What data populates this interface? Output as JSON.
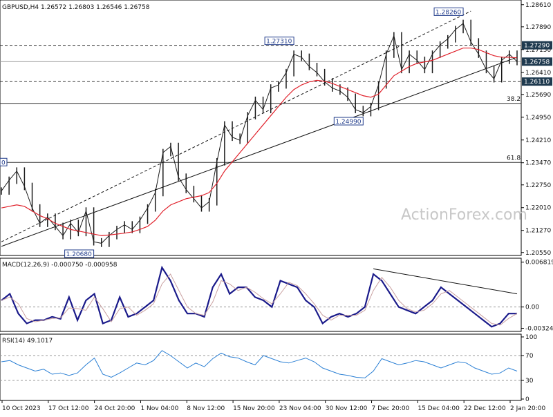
{
  "chart_data": {
    "type": "candlestick",
    "symbol_header": "GBPUSD,H4  1.26572 1.26803 1.26546 1.26758",
    "watermark": "ActionForex.com",
    "x_tick_labels": [
      "10 Oct 2023",
      "17 Oct 12:00",
      "24 Oct 20:00",
      "1 Nov 04:00",
      "8 Nov 12:00",
      "15 Nov 20:00",
      "23 Nov 04:00",
      "30 Nov 12:00",
      "7 Dec 20:00",
      "15 Dec 04:00",
      "22 Dec 12:00",
      "2 Jan 20:00"
    ],
    "price_panel": {
      "ylim": [
        1.205,
        1.2865
      ],
      "y_tick_labels": [
        "1.28610",
        "1.27890",
        "1.27150",
        "1.26410",
        "1.25690",
        "1.24950",
        "1.24210",
        "1.23470",
        "1.22750",
        "1.22010",
        "1.21270",
        "1.20550"
      ],
      "y_tick_values": [
        1.2861,
        1.2789,
        1.2715,
        1.2641,
        1.2569,
        1.2495,
        1.2421,
        1.2347,
        1.2275,
        1.2201,
        1.2127,
        1.2055
      ],
      "price_tags": [
        {
          "label": "1.27290",
          "value": 1.2729
        },
        {
          "label": "1.26758",
          "value": 1.26758
        },
        {
          "label": "1.26110",
          "value": 1.2611
        }
      ],
      "level_annotations": [
        {
          "label": "1.28260",
          "value": 1.2826,
          "date_index": 60
        },
        {
          "label": "1.27310",
          "value": 1.2731,
          "date_index": 38
        },
        {
          "label": "1.24990",
          "value": 1.2499,
          "date_index": 47
        },
        {
          "label": "1.20680",
          "value": 1.2068,
          "date_index": 12
        }
      ],
      "partial_left_tag": "0",
      "fib_levels": [
        {
          "label": "38.2",
          "value": 1.254
        },
        {
          "label": "61.8",
          "value": 1.2348
        }
      ],
      "close_series": [
        1.2255,
        1.229,
        1.232,
        1.227,
        1.22,
        1.215,
        1.217,
        1.214,
        1.211,
        1.215,
        1.212,
        1.219,
        1.209,
        1.2085,
        1.211,
        1.213,
        1.2145,
        1.213,
        1.216,
        1.22,
        1.225,
        1.238,
        1.24,
        1.23,
        1.226,
        1.223,
        1.22,
        1.222,
        1.235,
        1.247,
        1.243,
        1.242,
        1.25,
        1.255,
        1.252,
        1.259,
        1.26,
        1.264,
        1.27,
        1.269,
        1.266,
        1.264,
        1.261,
        1.259,
        1.258,
        1.256,
        1.252,
        1.251,
        1.253,
        1.26,
        1.27,
        1.276,
        1.265,
        1.27,
        1.268,
        1.265,
        1.27,
        1.273,
        1.275,
        1.278,
        1.28,
        1.274,
        1.27,
        1.265,
        1.262,
        1.268,
        1.27,
        1.2676
      ],
      "ma_series": [
        1.22,
        1.2205,
        1.221,
        1.2205,
        1.219,
        1.2175,
        1.2165,
        1.215,
        1.214,
        1.213,
        1.2125,
        1.212,
        1.2115,
        1.211,
        1.2112,
        1.2115,
        1.2118,
        1.2122,
        1.213,
        1.214,
        1.216,
        1.219,
        1.221,
        1.222,
        1.223,
        1.2235,
        1.224,
        1.225,
        1.228,
        1.232,
        1.235,
        1.238,
        1.241,
        1.244,
        1.247,
        1.25,
        1.253,
        1.256,
        1.2585,
        1.26,
        1.261,
        1.2615,
        1.2612,
        1.2605,
        1.2595,
        1.2585,
        1.2575,
        1.2565,
        1.256,
        1.257,
        1.26,
        1.263,
        1.2645,
        1.266,
        1.267,
        1.2675,
        1.268,
        1.269,
        1.27,
        1.271,
        1.272,
        1.272,
        1.2715,
        1.2705,
        1.2695,
        1.269,
        1.269,
        1.2688
      ],
      "channel_lines": [
        {
          "name": "rising-support",
          "from": [
            0,
            1.2075
          ],
          "to": [
            67,
            1.269
          ]
        },
        {
          "name": "upper-channel",
          "from": [
            0,
            1.209
          ],
          "to": [
            61,
            1.284
          ]
        }
      ]
    },
    "macd_panel": {
      "title": "MACD(12,26,9) -0.000750 -0.000958",
      "ylim": [
        -0.0035,
        0.007
      ],
      "y_tick_labels": [
        "0.006819",
        "0.00",
        "-0.003241"
      ],
      "y_tick_values": [
        0.006819,
        0.0,
        -0.003241
      ],
      "macd_series": [
        0.001,
        0.002,
        -0.001,
        -0.0025,
        -0.002,
        -0.002,
        -0.0015,
        -0.0018,
        0.0015,
        -0.002,
        0.001,
        0.002,
        -0.0025,
        -0.002,
        0.0015,
        -0.0015,
        -0.001,
        0.0,
        0.001,
        0.006,
        0.004,
        0.001,
        -0.001,
        -0.001,
        -0.0015,
        0.003,
        0.005,
        0.002,
        0.003,
        0.003,
        0.0015,
        0.001,
        0.0,
        0.004,
        0.0035,
        0.003,
        0.001,
        0.0,
        -0.0025,
        -0.0015,
        -0.001,
        -0.0015,
        -0.001,
        0.0,
        0.005,
        0.004,
        0.002,
        0.0,
        -0.0005,
        -0.001,
        0.0,
        0.001,
        0.003,
        0.002,
        0.001,
        0.0,
        -0.001,
        -0.002,
        -0.003,
        -0.0025,
        -0.001,
        -0.001
      ],
      "divergence_line": {
        "from": [
          44,
          0.0058
        ],
        "to": [
          61,
          0.002
        ]
      }
    },
    "rsi_panel": {
      "title": "RSI(14) 49.1017",
      "ylim": [
        0,
        100
      ],
      "y_tick_labels": [
        "100",
        "70",
        "30",
        "0"
      ],
      "y_tick_values": [
        100,
        70,
        30,
        0
      ],
      "rsi_series": [
        60,
        62,
        55,
        50,
        45,
        48,
        40,
        42,
        38,
        42,
        55,
        66,
        40,
        35,
        42,
        50,
        58,
        55,
        62,
        78,
        70,
        60,
        50,
        58,
        52,
        65,
        74,
        68,
        66,
        60,
        55,
        70,
        65,
        60,
        58,
        62,
        66,
        60,
        50,
        45,
        40,
        38,
        35,
        34,
        45,
        65,
        60,
        55,
        58,
        62,
        60,
        55,
        50,
        55,
        60,
        58,
        50,
        45,
        40,
        42,
        50,
        45
      ]
    },
    "colors": {
      "price_line": "#1a1a1a",
      "ma": "#e0202a",
      "macd_main": "#1a1a8a",
      "macd_signal": "#c9a0a0",
      "rsi": "#2a7fd4",
      "tag_bg": "#1f3a4f",
      "watermark": "#c8c8c8"
    }
  }
}
